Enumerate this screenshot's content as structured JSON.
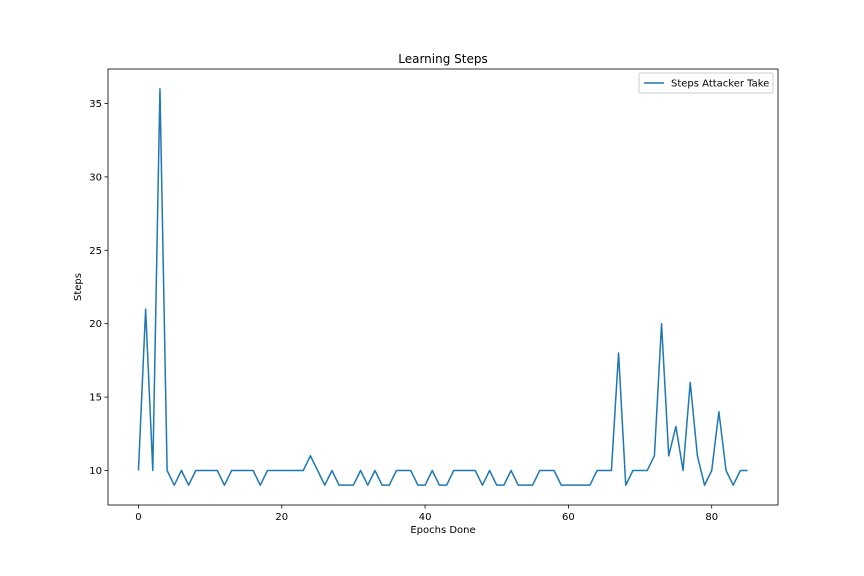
{
  "chart_data": {
    "type": "line",
    "title": "Learning Steps",
    "xlabel": "Epochs Done",
    "ylabel": "Steps",
    "xlim": [
      -4.25,
      89.25
    ],
    "ylim": [
      7.65,
      37.35
    ],
    "xticks": [
      "0",
      "20",
      "40",
      "60",
      "80"
    ],
    "yticks": [
      "10",
      "15",
      "20",
      "25",
      "30",
      "35"
    ],
    "grid": false,
    "legend_position": "top-right",
    "series": [
      {
        "name": "Steps Attacker Take",
        "color": "#1f77b4",
        "x": [
          0,
          1,
          2,
          3,
          4,
          5,
          6,
          7,
          8,
          9,
          10,
          11,
          12,
          13,
          14,
          15,
          16,
          17,
          18,
          19,
          20,
          21,
          22,
          23,
          24,
          25,
          26,
          27,
          28,
          29,
          30,
          31,
          32,
          33,
          34,
          35,
          36,
          37,
          38,
          39,
          40,
          41,
          42,
          43,
          44,
          45,
          46,
          47,
          48,
          49,
          50,
          51,
          52,
          53,
          54,
          55,
          56,
          57,
          58,
          59,
          60,
          61,
          62,
          63,
          64,
          65,
          66,
          67,
          68,
          69,
          70,
          71,
          72,
          73,
          74,
          75,
          76,
          77,
          78,
          79,
          80,
          81,
          82,
          83,
          84,
          85
        ],
        "values": [
          10,
          21,
          10,
          36,
          10,
          9,
          10,
          9,
          10,
          10,
          10,
          10,
          9,
          10,
          10,
          10,
          10,
          9,
          10,
          10,
          10,
          10,
          10,
          10,
          11,
          10,
          9,
          10,
          9,
          9,
          9,
          10,
          9,
          10,
          9,
          9,
          10,
          10,
          10,
          9,
          9,
          10,
          9,
          9,
          10,
          10,
          10,
          10,
          9,
          10,
          9,
          9,
          10,
          9,
          9,
          9,
          10,
          10,
          10,
          9,
          9,
          9,
          9,
          9,
          10,
          10,
          10,
          18,
          9,
          10,
          10,
          10,
          11,
          20,
          11,
          13,
          10,
          16,
          11,
          9,
          10,
          14,
          10,
          9,
          10,
          10
        ]
      }
    ]
  }
}
